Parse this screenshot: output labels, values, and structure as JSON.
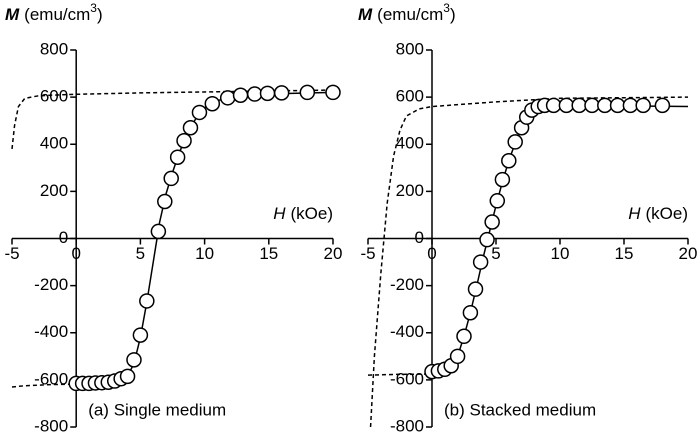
{
  "chart_data": [
    {
      "type": "scatter",
      "y_label": {
        "symbol": "M",
        "unit": "(emu/cm",
        "superscript": "3",
        "close": ")"
      },
      "x_label": {
        "symbol": "H",
        "unit": "(kOe)"
      },
      "annotation": "(a) Single medium",
      "xlim": [
        -5,
        20
      ],
      "xticks": [
        -5,
        0,
        5,
        10,
        15,
        20
      ],
      "ylim": [
        -800,
        800
      ],
      "yticks": [
        -800,
        -600,
        -400,
        -200,
        0,
        200,
        400,
        600,
        800
      ],
      "series": [
        {
          "style": "markers",
          "color": "#000000",
          "x": [
            0,
            0.5,
            1,
            1.5,
            2,
            2.5,
            3,
            3.5,
            4,
            4.5,
            5,
            5.5,
            6.4,
            6.9,
            7.4,
            7.9,
            8.4,
            8.9,
            9.6,
            10.6,
            11.8,
            12.8,
            13.9,
            14.9,
            16,
            18,
            20
          ],
          "values": [
            -615,
            -615,
            -615,
            -613,
            -612,
            -610,
            -605,
            -595,
            -585,
            -515,
            -410,
            -265,
            30,
            157,
            255,
            345,
            415,
            470,
            535,
            572,
            597,
            608,
            613,
            616,
            618,
            620,
            620
          ]
        },
        {
          "style": "solid",
          "color": "#000000",
          "x": [
            0,
            3,
            4,
            4.5,
            5,
            5.5,
            6,
            6.5,
            7,
            7.5,
            8,
            8.5,
            9,
            9.5,
            10,
            11,
            12,
            14,
            20
          ],
          "values": [
            -615,
            -605,
            -585,
            -530,
            -420,
            -270,
            -100,
            70,
            190,
            280,
            360,
            425,
            480,
            525,
            555,
            585,
            600,
            612,
            620
          ]
        },
        {
          "style": "dashed",
          "color": "#000000",
          "x": [
            -5,
            -4.8,
            -4.5,
            -4,
            -3,
            -2,
            0,
            5,
            10,
            15,
            20
          ],
          "values": [
            380,
            480,
            560,
            595,
            605,
            608,
            612,
            618,
            622,
            626,
            630
          ]
        },
        {
          "style": "dashed",
          "color": "#000000",
          "x": [
            -5,
            -4,
            -2,
            0
          ],
          "values": [
            -630,
            -625,
            -620,
            -618
          ]
        }
      ]
    },
    {
      "type": "scatter",
      "y_label": {
        "symbol": "M",
        "unit": "(emu/cm",
        "superscript": "3",
        "close": ")"
      },
      "x_label": {
        "symbol": "H",
        "unit": "(kOe)"
      },
      "annotation": "(b) Stacked medium",
      "xlim": [
        -5,
        20
      ],
      "xticks": [
        -5,
        0,
        5,
        10,
        15,
        20
      ],
      "ylim": [
        -800,
        800
      ],
      "yticks": [
        -800,
        -600,
        -400,
        -200,
        0,
        200,
        400,
        600,
        800
      ],
      "series": [
        {
          "style": "markers",
          "color": "#000000",
          "x": [
            0,
            0.5,
            1,
            1.5,
            2,
            2.5,
            3,
            3.4,
            3.8,
            4.3,
            4.7,
            5.1,
            5.5,
            6,
            6.5,
            7,
            7.4,
            7.8,
            8.3,
            8.8,
            9.5,
            10.5,
            11.5,
            12.5,
            13.5,
            14.5,
            15.5,
            16.5,
            18
          ],
          "values": [
            -565,
            -562,
            -555,
            -540,
            -500,
            -415,
            -315,
            -215,
            -100,
            -5,
            70,
            160,
            250,
            330,
            410,
            470,
            515,
            545,
            560,
            565,
            565,
            565,
            565,
            565,
            565,
            565,
            565,
            565,
            565
          ]
        },
        {
          "style": "solid",
          "color": "#000000",
          "x": [
            0,
            1,
            1.5,
            2,
            2.5,
            3,
            3.5,
            4,
            4.5,
            5,
            5.5,
            6,
            6.5,
            7,
            7.5,
            8,
            9,
            12,
            20
          ],
          "values": [
            -565,
            -555,
            -540,
            -500,
            -415,
            -315,
            -200,
            -80,
            30,
            140,
            240,
            330,
            405,
            465,
            515,
            545,
            562,
            565,
            560
          ]
        },
        {
          "style": "dashed",
          "color": "#000000",
          "x": [
            -4.8,
            -4.5,
            -4,
            -3.5,
            -3,
            -2.5,
            -2,
            -1,
            0,
            5,
            10,
            20
          ],
          "values": [
            -800,
            -500,
            -150,
            150,
            350,
            460,
            520,
            550,
            560,
            580,
            595,
            600
          ]
        },
        {
          "style": "dashed",
          "color": "#000000",
          "x": [
            -5,
            -3,
            0
          ],
          "values": [
            -580,
            -577,
            -575
          ]
        }
      ]
    }
  ]
}
